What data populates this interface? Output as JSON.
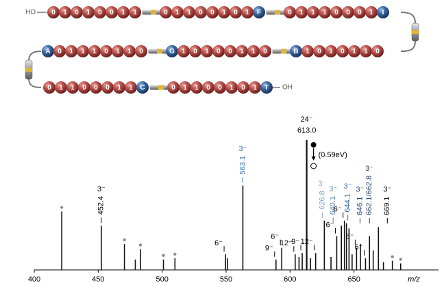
{
  "diagram": {
    "start": "HO",
    "end": "OH",
    "rows": [
      [
        [
          "0",
          "1",
          "0",
          "1",
          "0",
          "0",
          "1",
          "1"
        ],
        [
          "0",
          "1",
          "1",
          "0",
          "0",
          "1",
          "0",
          "1",
          "F"
        ],
        [
          "0",
          "1",
          "1",
          "1",
          "0",
          "0",
          "0",
          "1",
          "I"
        ]
      ],
      [
        [
          "A",
          "0",
          "1",
          "1",
          "1",
          "0",
          "1",
          "1",
          "0"
        ],
        [
          "G",
          "1",
          "0",
          "1",
          "0",
          "0",
          "1",
          "1",
          "0"
        ],
        [
          "B",
          "1",
          "0",
          "1",
          "0",
          "1",
          "1",
          "0"
        ]
      ],
      [
        [
          "0",
          "1",
          "1",
          "0",
          "0",
          "0",
          "1",
          "1",
          "C"
        ],
        [
          "0",
          "1",
          "1",
          "0",
          "0",
          "1",
          "0",
          "1",
          "T"
        ]
      ]
    ]
  },
  "chart_data": {
    "type": "stick",
    "x_label": "m/z",
    "xlim": [
      400,
      700
    ],
    "xticks": [
      400,
      450,
      500,
      550,
      600,
      650
    ],
    "ylim": [
      0,
      100
    ],
    "color": "#111111",
    "dot_color": "#8c8c8c",
    "x": [
      421.5,
      452.4,
      470.5,
      479,
      483,
      501,
      510,
      549.5,
      551,
      563.1,
      589,
      593.5,
      604,
      607,
      609.5,
      613.0,
      616,
      620,
      626.8,
      632,
      636.5,
      640.1,
      642.5,
      644.1,
      646.1,
      648.5,
      652,
      655,
      659,
      662.1,
      665,
      669.1,
      673,
      680,
      686.5
    ],
    "values": [
      45,
      34,
      20,
      8,
      16,
      8,
      9,
      12,
      9,
      65,
      8,
      17,
      12,
      10,
      13,
      100,
      9,
      13,
      38,
      10,
      26,
      34,
      38,
      36,
      32,
      12,
      17,
      20,
      9,
      26,
      15,
      33,
      6,
      7,
      5
    ],
    "dot": [
      true,
      false,
      true,
      false,
      true,
      true,
      true,
      false,
      false,
      false,
      false,
      false,
      false,
      false,
      false,
      false,
      false,
      false,
      false,
      false,
      false,
      false,
      false,
      false,
      false,
      false,
      false,
      false,
      false,
      false,
      false,
      false,
      false,
      true,
      true
    ],
    "annotations": [
      {
        "text": "452.4",
        "charge": "3⁻",
        "x": 452.4,
        "color": "#000000"
      },
      {
        "text": "563.1",
        "charge": "3⁻",
        "x": 563.1,
        "color": "#2f6aa8"
      },
      {
        "text": "613.0",
        "charge": "24⁻",
        "x": 613.0,
        "color": "#000000",
        "orientation": "horizontal",
        "note": "(0.59eV)"
      },
      {
        "text": "626.8",
        "charge": "3⁻",
        "x": 626.8,
        "color": "#8ea8c6"
      },
      {
        "text": "640.1",
        "charge": "3⁻",
        "x": 640.1,
        "color": "#5a84b4"
      },
      {
        "text": "644.1",
        "charge": "3⁻",
        "x": 644.1,
        "color": "#2f6aa8"
      },
      {
        "text": "646.1",
        "charge": "3⁻",
        "x": 646.1,
        "color": "#1d3f6e"
      },
      {
        "text": "662.1/662.8",
        "charge": "3⁻",
        "x": 662.1,
        "color": "#1d3f6e"
      },
      {
        "text": "669.1",
        "charge": "3⁻",
        "x": 669.1,
        "color": "#000000"
      },
      {
        "charge": "6⁻",
        "x": 549.5,
        "color": "#000000"
      },
      {
        "charge": "9⁻",
        "x": 589,
        "color": "#000000"
      },
      {
        "charge": "6⁻",
        "x": 593.5,
        "color": "#000000"
      },
      {
        "charge": "12⁻",
        "x": 604,
        "color": "#000000"
      },
      {
        "charge": "9⁻",
        "x": 609.5,
        "color": "#000000"
      },
      {
        "charge": "12⁻",
        "x": 620,
        "color": "#000000"
      },
      {
        "charge": "6⁻",
        "x": 636.5,
        "color": "#000000"
      },
      {
        "charge": "6⁻",
        "x": 642.5,
        "color": "#000000"
      },
      {
        "charge": "6⁻",
        "x": 652,
        "color": "#000000"
      },
      {
        "charge": "6⁻",
        "x": 659,
        "color": "#000000"
      }
    ]
  }
}
